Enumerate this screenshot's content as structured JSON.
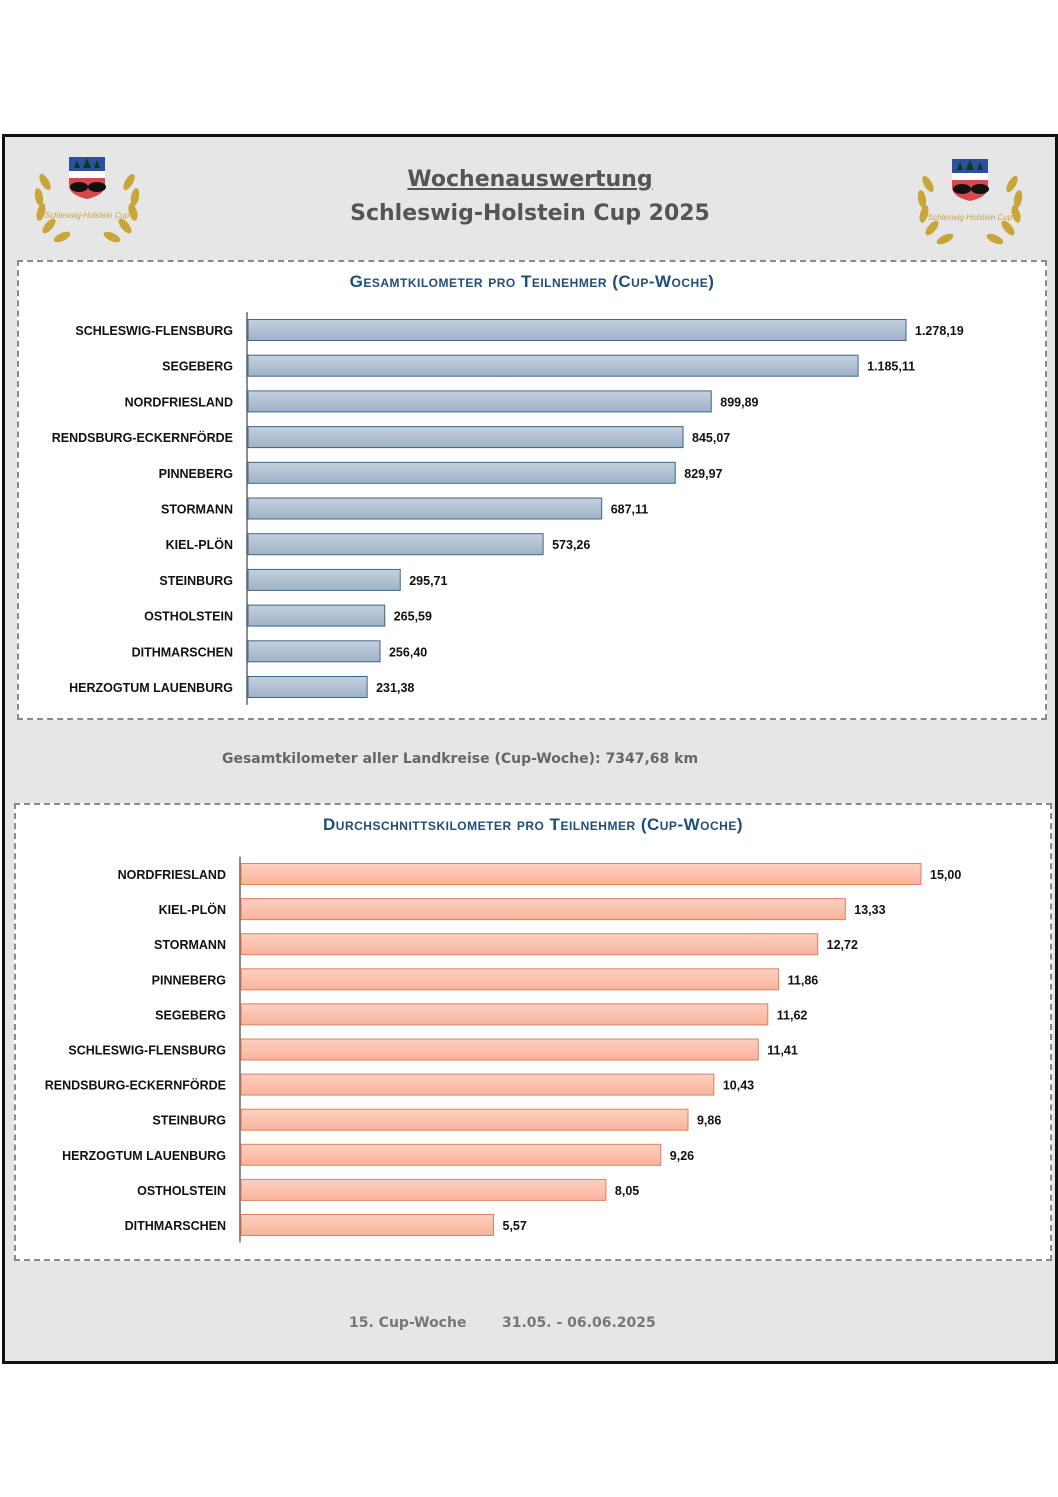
{
  "header": {
    "title": "Wochenauswertung",
    "subtitle": "Schleswig-Holstein Cup 2025",
    "logo_text": "Schleswig-Holstein Cup"
  },
  "colors": {
    "bar_blue": "#9fb2c7",
    "bar_blue_edge": "#3e6689",
    "bar_salmon": "#f8b49c",
    "bar_salmon_edge": "#e0805e",
    "title_blue": "#1f4e79"
  },
  "chart_data": [
    {
      "type": "bar",
      "orientation": "horizontal",
      "title": "Gesamtkilometer pro Teilnehmer (Cup-Woche)",
      "categories": [
        "SCHLESWIG-FLENSBURG",
        "SEGEBERG",
        "NORDFRIESLAND",
        "RENDSBURG-ECKERNFÖRDE",
        "PINNEBERG",
        "STORMANN",
        "KIEL-PLÖN",
        "STEINBURG",
        "OSTHOLSTEIN",
        "DITHMARSCHEN",
        "HERZOGTUM LAUENBURG"
      ],
      "values": [
        1278.19,
        1185.11,
        899.89,
        845.07,
        829.97,
        687.11,
        573.26,
        295.71,
        265.59,
        256.4,
        231.38
      ],
      "value_labels": [
        "1.278,19",
        "1.185,11",
        "899,89",
        "845,07",
        "829,97",
        "687,11",
        "573,26",
        "295,71",
        "265,59",
        "256,40",
        "231,38"
      ],
      "xlim": [
        0,
        1278.19
      ],
      "grid": false,
      "legend": "none"
    },
    {
      "type": "bar",
      "orientation": "horizontal",
      "title": "Durchschnittskilometer pro Teilnehmer (Cup-Woche)",
      "categories": [
        "NORDFRIESLAND",
        "KIEL-PLÖN",
        "STORMANN",
        "PINNEBERG",
        "SEGEBERG",
        "SCHLESWIG-FLENSBURG",
        "RENDSBURG-ECKERNFÖRDE",
        "STEINBURG",
        "HERZOGTUM LAUENBURG",
        "OSTHOLSTEIN",
        "DITHMARSCHEN"
      ],
      "values": [
        15.0,
        13.33,
        12.72,
        11.86,
        11.62,
        11.41,
        10.43,
        9.86,
        9.26,
        8.05,
        5.57
      ],
      "value_labels": [
        "15,00",
        "13,33",
        "12,72",
        "11,86",
        "11,62",
        "11,41",
        "10,43",
        "9,86",
        "9,26",
        "8,05",
        "5,57"
      ],
      "xlim": [
        0,
        15.0
      ],
      "grid": false,
      "legend": "none"
    }
  ],
  "summary": {
    "total_label": "Gesamtkilometer aller Landkreise (Cup-Woche):",
    "total_value": "7347,68 km"
  },
  "footer": {
    "week": "15. Cup-Woche",
    "dates": "31.05. - 06.06.2025"
  }
}
